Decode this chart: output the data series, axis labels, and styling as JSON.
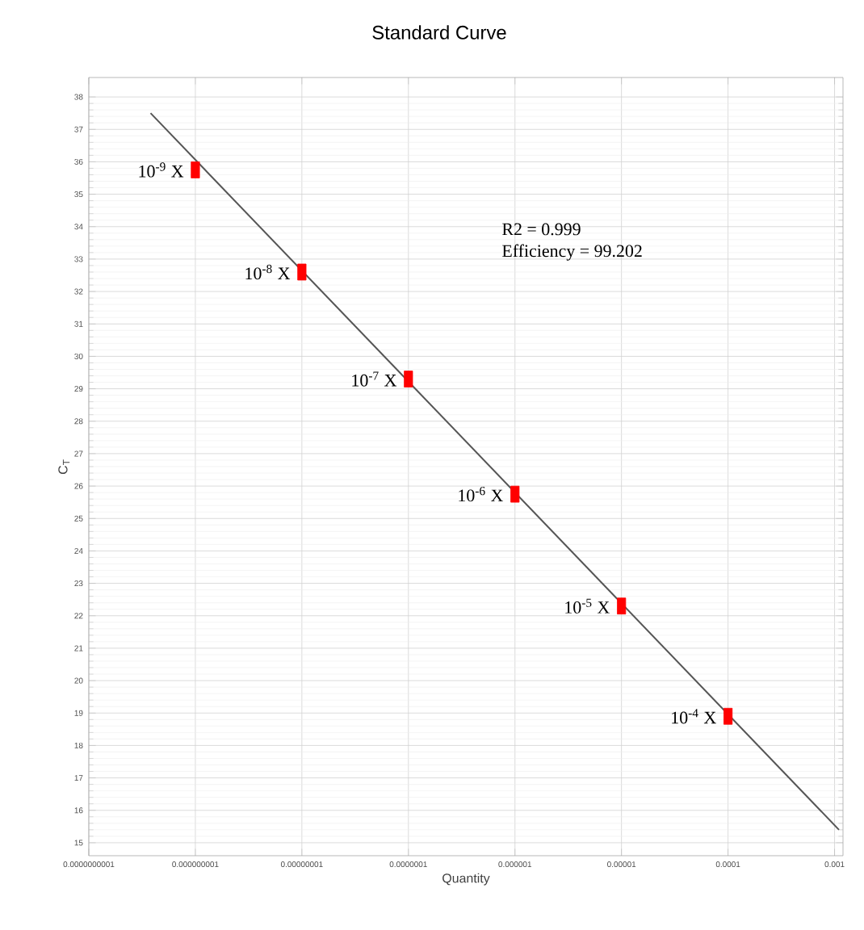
{
  "chart_data": {
    "type": "scatter",
    "title": "Standard Curve",
    "xlabel": "Quantity",
    "ylabel": "C$_{T}$",
    "log": "x",
    "grid": true,
    "xlim": [
      1e-10,
      0.0012
    ],
    "ylim": [
      14.6,
      38.6
    ],
    "xticks": [
      {
        "value": 1e-10,
        "label": "0.0000000001"
      },
      {
        "value": 1e-09,
        "label": "0.000000001"
      },
      {
        "value": 1e-08,
        "label": "0.00000001"
      },
      {
        "value": 1e-07,
        "label": "0.0000001"
      },
      {
        "value": 1e-06,
        "label": "0.000001"
      },
      {
        "value": 1e-05,
        "label": "0.00001"
      },
      {
        "value": 0.0001,
        "label": "0.0001"
      },
      {
        "value": 0.001,
        "label": "0.001"
      }
    ],
    "yticks": [
      15,
      16,
      17,
      18,
      19,
      20,
      21,
      22,
      23,
      24,
      25,
      26,
      27,
      28,
      29,
      30,
      31,
      32,
      33,
      34,
      35,
      36,
      37,
      38
    ],
    "series": [
      {
        "type": "line",
        "color": "#555555",
        "line_style": "solid",
        "marker": "none",
        "x": [
          3.8e-10,
          0.0011
        ],
        "values": [
          37.5,
          15.4
        ]
      },
      {
        "color": "#ff0000",
        "marker": "square",
        "x": [
          1e-09,
          1e-08,
          1e-07,
          1e-06,
          1e-05,
          0.0001
        ],
        "values": [
          35.75,
          32.6,
          29.3,
          25.75,
          22.3,
          18.9
        ]
      }
    ],
    "annotations": [
      {
        "text": "10$^{-9}$ X",
        "x": 1e-09,
        "y": 35.75
      },
      {
        "text": "10$^{-8}$ X",
        "x": 1e-08,
        "y": 32.6
      },
      {
        "text": "10$^{-7}$ X",
        "x": 1e-07,
        "y": 29.3
      },
      {
        "text": "10$^{-6}$ X",
        "x": 1e-06,
        "y": 25.75
      },
      {
        "text": "10$^{-5}$ X",
        "x": 1e-05,
        "y": 22.3
      },
      {
        "text": "10$^{-4}$ X",
        "x": 0.0001,
        "y": 18.9
      },
      "R2 = 0.999",
      "Efficiency = 99.202"
    ]
  }
}
